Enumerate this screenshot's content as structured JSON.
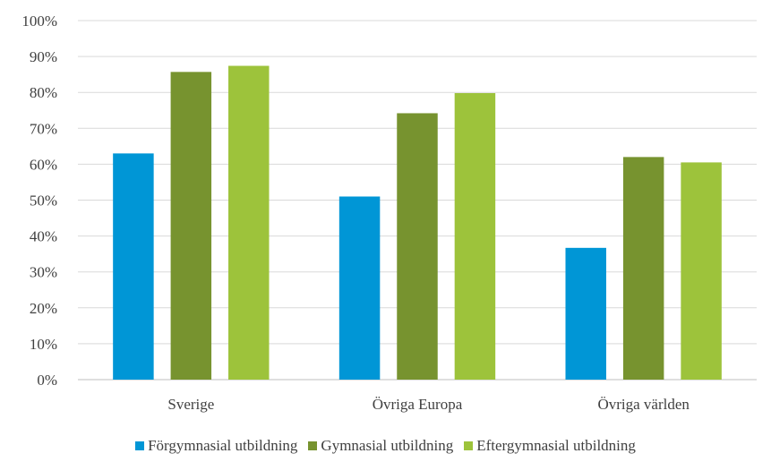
{
  "chart_data": {
    "type": "bar",
    "categories": [
      "Sverige",
      "Övriga Europa",
      "Övriga världen"
    ],
    "series": [
      {
        "name": "Förgymnasial utbildning",
        "color": "#0096D6",
        "values": [
          63,
          51,
          36.7
        ]
      },
      {
        "name": "Gymnasial utbildning",
        "color": "#77932F",
        "values": [
          85.7,
          74.2,
          62
        ]
      },
      {
        "name": "Eftergymnasial utbildning",
        "color": "#9DC33B",
        "values": [
          87.4,
          79.8,
          60.5
        ]
      }
    ],
    "yticks": [
      "0%",
      "10%",
      "20%",
      "30%",
      "40%",
      "50%",
      "60%",
      "70%",
      "80%",
      "90%",
      "100%"
    ],
    "ylim": [
      0,
      100
    ],
    "y_unit": "%",
    "grid": true,
    "legend_position": "bottom",
    "title": "",
    "xlabel": "",
    "ylabel": ""
  }
}
